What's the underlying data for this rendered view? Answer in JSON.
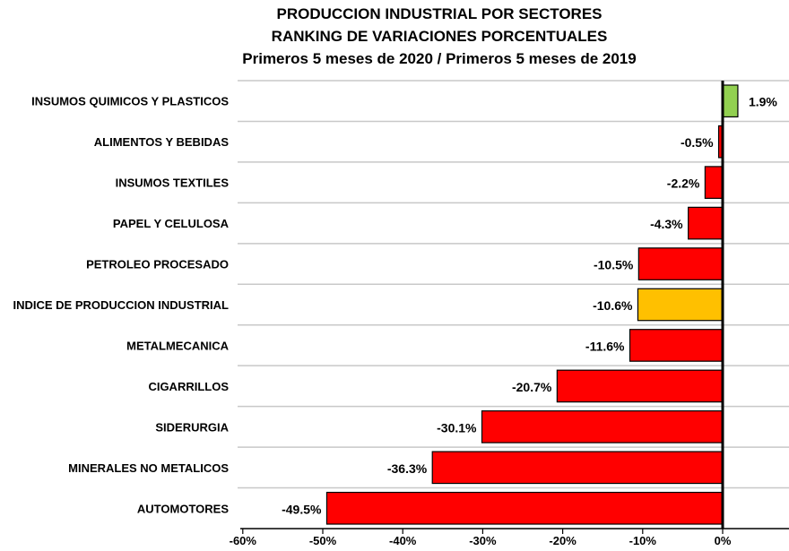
{
  "chart_data": {
    "type": "bar",
    "orientation": "horizontal",
    "title": [
      "PRODUCCION INDUSTRIAL POR SECTORES",
      "RANKING DE VARIACIONES PORCENTUALES",
      "Primeros 5 meses de 2020 / Primeros 5 meses de 2019"
    ],
    "categories": [
      "INSUMOS QUIMICOS Y PLASTICOS",
      "ALIMENTOS Y BEBIDAS",
      "INSUMOS TEXTILES",
      "PAPEL Y CELULOSA",
      "PETROLEO PROCESADO",
      "INDICE DE PRODUCCION INDUSTRIAL",
      "METALMECANICA",
      "CIGARRILLOS",
      "SIDERURGIA",
      "MINERALES NO METALICOS",
      "AUTOMOTORES"
    ],
    "values": [
      1.9,
      -0.5,
      -2.2,
      -4.3,
      -10.5,
      -10.6,
      -11.6,
      -20.7,
      -30.1,
      -36.3,
      -49.5
    ],
    "data_labels": [
      "1.9%",
      "-0.5%",
      "-2.2%",
      "-4.3%",
      "-10.5%",
      "-10.6%",
      "-11.6%",
      "-20.7%",
      "-30.1%",
      "-36.3%",
      "-49.5%"
    ],
    "xlim": [
      -60,
      8
    ],
    "xticks": [
      -60,
      -50,
      -40,
      -30,
      -20,
      -10,
      0
    ],
    "xtick_labels": [
      "-60%",
      "-50%",
      "-40%",
      "-30%",
      "-20%",
      "-10%",
      "0%"
    ],
    "grid": "horizontal",
    "colors": {
      "positive": "#92d050",
      "negative": "#ff0000",
      "index": "#ffc000"
    },
    "highlight_category": "INDICE DE PRODUCCION INDUSTRIAL"
  }
}
